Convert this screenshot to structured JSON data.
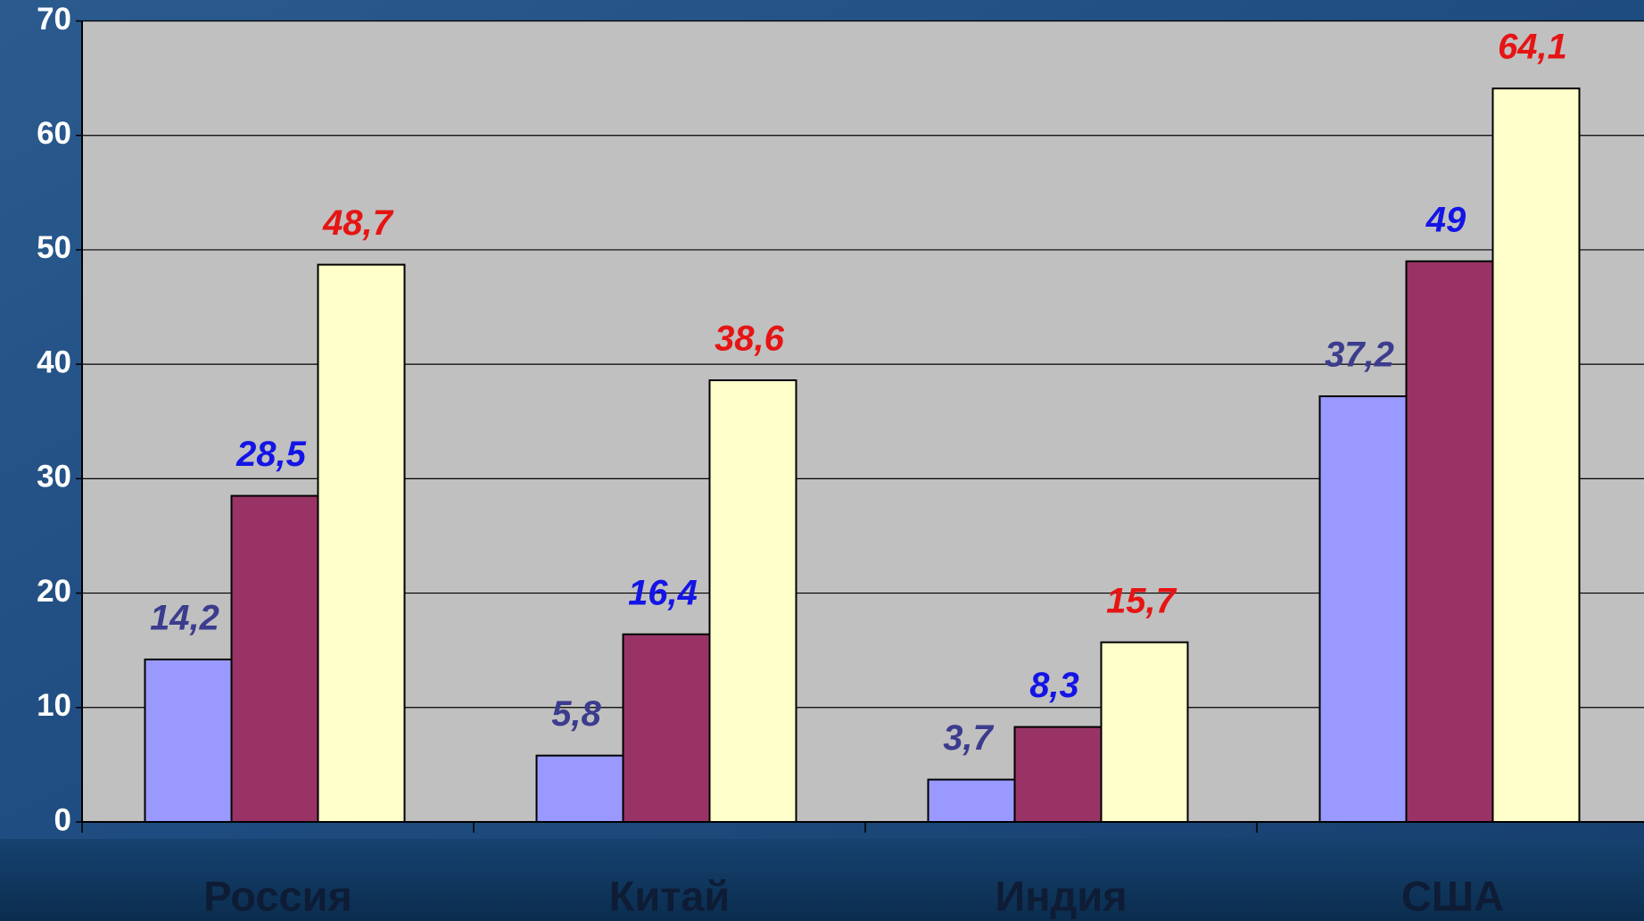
{
  "chart_data": {
    "type": "bar",
    "categories": [
      "Россия",
      "Китай",
      "Индия",
      "США"
    ],
    "series": [
      {
        "color": "#9999ff",
        "label_color": "#3c3c8e",
        "values": [
          14.2,
          5.8,
          3.7,
          37.2
        ],
        "value_labels": [
          "14,2",
          "5,8",
          "3,7",
          "37,2"
        ]
      },
      {
        "color": "#993366",
        "label_color": "#1414e6",
        "values": [
          28.5,
          16.4,
          8.3,
          49
        ],
        "value_labels": [
          "28,5",
          "16,4",
          "8,3",
          "49"
        ]
      },
      {
        "color": "#ffffcc",
        "label_color": "#e61414",
        "values": [
          48.7,
          38.6,
          15.7,
          64.1
        ],
        "value_labels": [
          "48,7",
          "38,6",
          "15,7",
          "64,1"
        ]
      }
    ],
    "ylim": [
      0,
      70
    ],
    "yticks": [
      0,
      10,
      20,
      30,
      40,
      50,
      60,
      70
    ],
    "grid": true
  }
}
